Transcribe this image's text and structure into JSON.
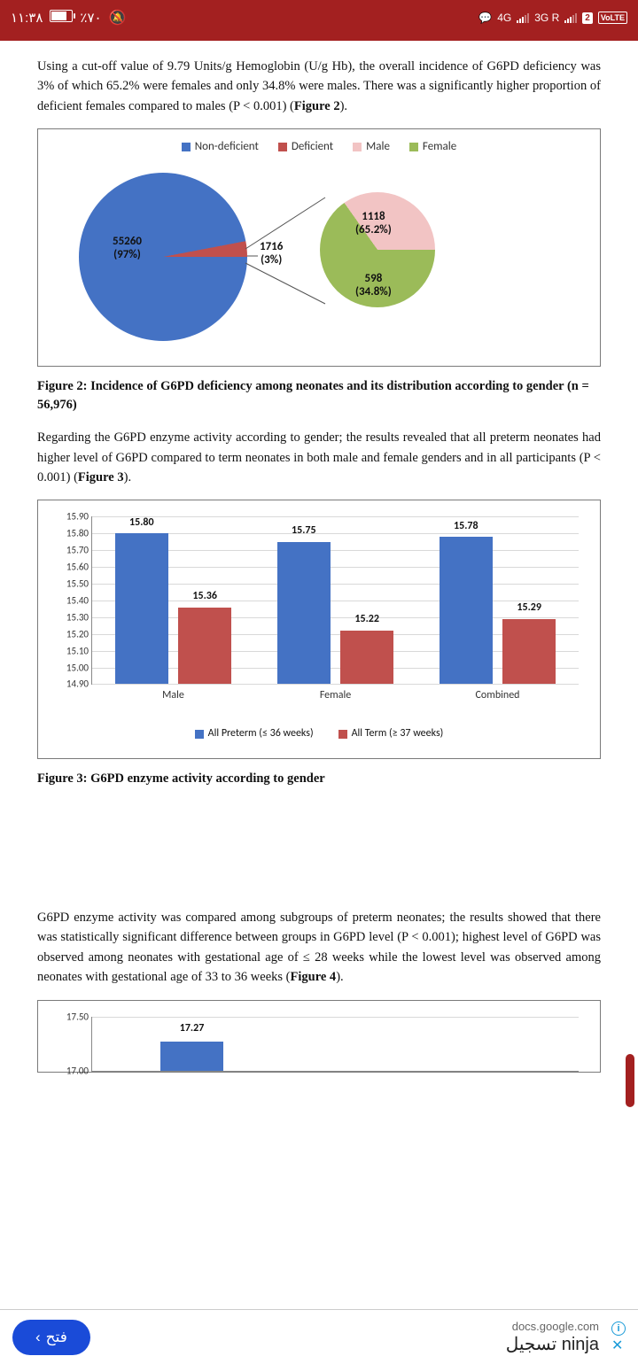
{
  "statusbar": {
    "time": "١١:٣٨",
    "battery_pct": "٪٧٠",
    "net1": "4G",
    "net2": "3G R",
    "badge": "2",
    "volte": "VoLTE"
  },
  "para1": "Using a cut-off value of 9.79 Units/g Hemoglobin (U/g Hb), the overall incidence of G6PD deficiency was 3% of which 65.2% were females and only 34.8% were males. There was a significantly higher proportion of deficient females compared to males (P < 0.001) (",
  "para1_boldref": "Figure 2",
  "para1_end": ").",
  "fig2": {
    "legend": [
      {
        "label": "Non-deficient",
        "color": "#4472c4"
      },
      {
        "label": "Deficient",
        "color": "#c0504d"
      },
      {
        "label": "Male",
        "color": "#f2c4c4"
      },
      {
        "label": "Female",
        "color": "#9bbb59"
      }
    ],
    "pie1": {
      "slices": [
        {
          "pct": 97,
          "color": "#4472c4"
        },
        {
          "pct": 3,
          "color": "#c0504d"
        }
      ],
      "label_main": "55260",
      "label_sub": "(97%)",
      "callout_val": "1716",
      "callout_sub": "(3%)"
    },
    "pie2": {
      "slices": [
        {
          "pct": 65.2,
          "color": "#9bbb59"
        },
        {
          "pct": 34.8,
          "color": "#f2c4c4"
        }
      ],
      "label_top_val": "1118",
      "label_top_sub": "(65.2%)",
      "label_bot_val": "598",
      "label_bot_sub": "(34.8%)"
    },
    "caption": "Figure 2: Incidence of G6PD deficiency among neonates and its distribution according to gender (n = 56,976)"
  },
  "para2": "Regarding the G6PD enzyme activity according to gender; the results revealed that all preterm neonates had higher level of G6PD compared to term neonates in both male and female genders and in all participants (P < 0.001) (",
  "para2_boldref": "Figure 3",
  "para2_end": ").",
  "fig3": {
    "ylim": [
      14.9,
      15.9
    ],
    "ystep": 0.1,
    "categories": [
      "Male",
      "Female",
      "Combined"
    ],
    "series": [
      {
        "name": "All Preterm (≤ 36 weeks)",
        "color": "#4472c4",
        "values": [
          15.8,
          15.75,
          15.78
        ]
      },
      {
        "name": "All Term (≥ 37 weeks)",
        "color": "#c0504d",
        "values": [
          15.36,
          15.22,
          15.29
        ]
      }
    ],
    "bar_width_pct": 11,
    "caption": "Figure 3: G6PD enzyme activity according to gender"
  },
  "para3": "G6PD enzyme activity was compared among subgroups of preterm neonates; the results showed that there was statistically significant difference between groups in G6PD level (P < 0.001); highest level of G6PD was observed among neonates with gestational age of ≤ 28 weeks while the lowest level was observed among neonates with gestational age of 33 to 36 weeks (",
  "para3_boldref": "Figure 4",
  "para3_end": ").",
  "fig4": {
    "ylim": [
      17.0,
      17.5
    ],
    "yticks": [
      "17.50",
      "17.00"
    ],
    "bar": {
      "value": "17.27",
      "color": "#4472c4"
    }
  },
  "ad": {
    "button": "فتح",
    "domain": "docs.google.com",
    "title": "تسجيل ninja"
  }
}
